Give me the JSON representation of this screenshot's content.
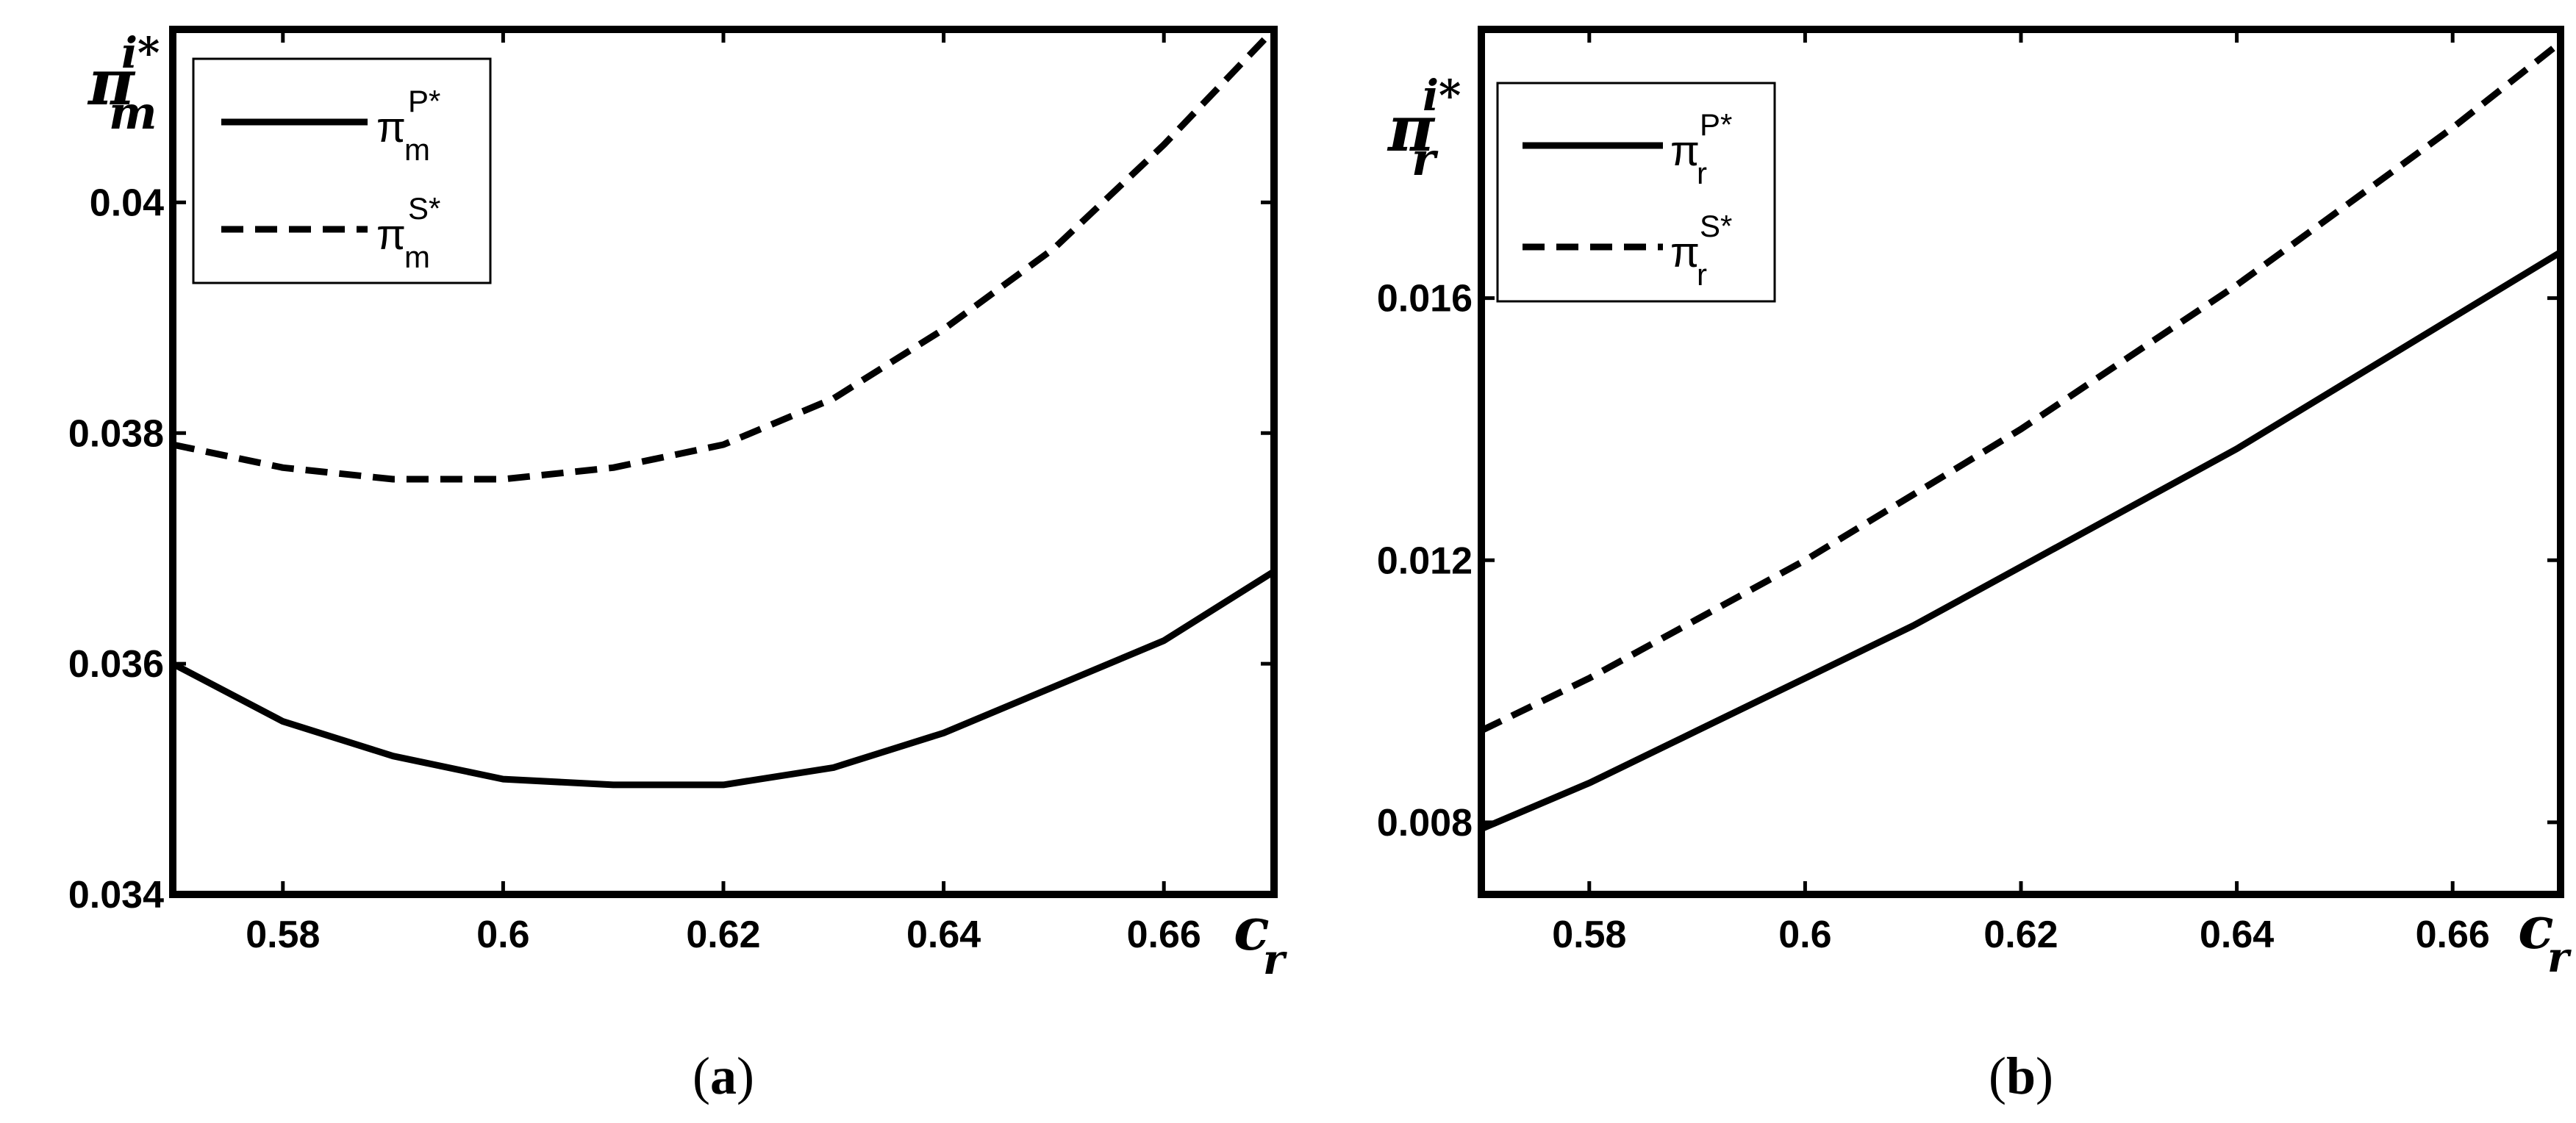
{
  "chart_data": [
    {
      "type": "line",
      "panel": "a",
      "caption": {
        "open": "(",
        "letter": "a",
        "close": ")"
      },
      "xlabel": {
        "base": "c",
        "sub": "r"
      },
      "ylabel": {
        "base": "π",
        "sub": "m",
        "sup": "i*"
      },
      "xlim": [
        0.57,
        0.67
      ],
      "ylim": [
        0.034,
        0.0415
      ],
      "xticks": [
        0.58,
        0.6,
        0.62,
        0.64,
        0.66
      ],
      "xtick_labels": [
        "0.58",
        "0.6",
        "0.62",
        "0.64",
        "0.66"
      ],
      "yticks": [
        0.034,
        0.036,
        0.038,
        0.04
      ],
      "ytick_labels": [
        "0.034",
        "0.036",
        "0.038",
        "0.04"
      ],
      "grid": false,
      "legend_position": "top-left",
      "series": [
        {
          "name": {
            "base": "π",
            "sub": "m",
            "sup": "P*"
          },
          "style": "solid",
          "x": [
            0.57,
            0.58,
            0.59,
            0.6,
            0.61,
            0.62,
            0.63,
            0.64,
            0.65,
            0.66,
            0.67
          ],
          "y": [
            0.036,
            0.0355,
            0.0352,
            0.035,
            0.03495,
            0.03495,
            0.0351,
            0.0354,
            0.0358,
            0.0362,
            0.0368
          ]
        },
        {
          "name": {
            "base": "π",
            "sub": "m",
            "sup": "S*"
          },
          "style": "dashed",
          "x": [
            0.57,
            0.58,
            0.59,
            0.6,
            0.61,
            0.62,
            0.63,
            0.64,
            0.65,
            0.66,
            0.67
          ],
          "y": [
            0.0379,
            0.0377,
            0.0376,
            0.0376,
            0.0377,
            0.0379,
            0.0383,
            0.0389,
            0.0396,
            0.0405,
            0.0415
          ]
        }
      ]
    },
    {
      "type": "line",
      "panel": "b",
      "caption": {
        "open": "(",
        "letter": "b",
        "close": ")"
      },
      "xlabel": {
        "base": "c",
        "sub": "r"
      },
      "ylabel": {
        "base": "π",
        "sub": "r",
        "sup": "i*"
      },
      "xlim": [
        0.57,
        0.67
      ],
      "ylim": [
        0.0069,
        0.0201
      ],
      "xticks": [
        0.58,
        0.6,
        0.62,
        0.64,
        0.66
      ],
      "xtick_labels": [
        "0.58",
        "0.6",
        "0.62",
        "0.64",
        "0.66"
      ],
      "yticks": [
        0.008,
        0.012,
        0.016
      ],
      "ytick_labels": [
        "0.008",
        "0.012",
        "0.016"
      ],
      "grid": false,
      "legend_position": "top-left",
      "series": [
        {
          "name": {
            "base": "π",
            "sub": "r",
            "sup": "P*"
          },
          "style": "solid",
          "x": [
            0.57,
            0.58,
            0.59,
            0.6,
            0.61,
            0.62,
            0.63,
            0.64,
            0.65,
            0.66,
            0.67
          ],
          "y": [
            0.0079,
            0.0086,
            0.0094,
            0.0102,
            0.011,
            0.0119,
            0.0128,
            0.0137,
            0.0147,
            0.0157,
            0.0167
          ]
        },
        {
          "name": {
            "base": "π",
            "sub": "r",
            "sup": "S*"
          },
          "style": "dashed",
          "x": [
            0.57,
            0.58,
            0.59,
            0.6,
            0.61,
            0.62,
            0.63,
            0.64,
            0.65,
            0.66,
            0.67
          ],
          "y": [
            0.0094,
            0.0102,
            0.0111,
            0.012,
            0.013,
            0.014,
            0.0151,
            0.0162,
            0.0174,
            0.0186,
            0.0199
          ]
        }
      ]
    }
  ]
}
